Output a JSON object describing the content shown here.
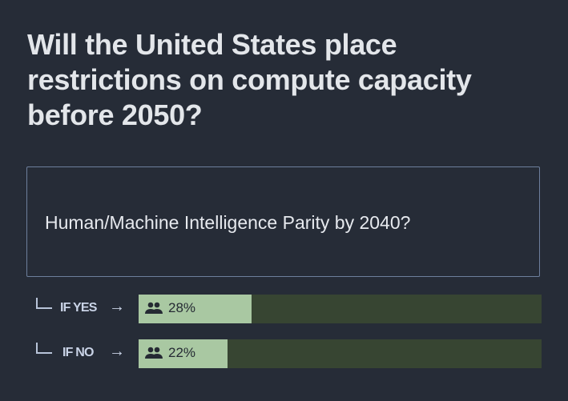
{
  "question": {
    "title": "Will the United States place restrictions on compute capacity before 2050?"
  },
  "linked_question": {
    "title": "Human/Machine Intelligence Parity by 2040?"
  },
  "conditions": [
    {
      "label": "IF YES",
      "arrow": "→",
      "percent_label": "28%",
      "percent": 28
    },
    {
      "label": "IF NO",
      "arrow": "→",
      "percent_label": "22%",
      "percent": 22
    }
  ],
  "colors": {
    "background": "#262c37",
    "fill": "#a9c8a2",
    "track": "#374532"
  }
}
